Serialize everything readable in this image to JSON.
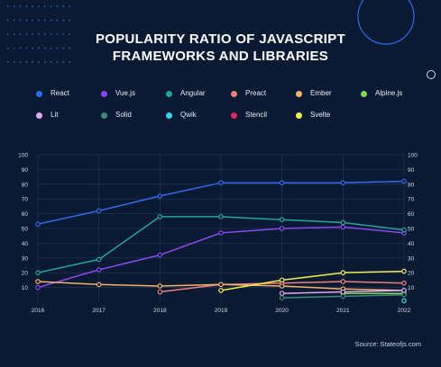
{
  "title_lines": [
    "POPULARITY RATIO OF JAVASCRIPT",
    "FRAMEWORKS AND LIBRARIES"
  ],
  "source": "Source: Stateofjs.com",
  "chart_data": {
    "type": "line",
    "x": [
      "2016",
      "2017",
      "2018",
      "2019",
      "2020",
      "2021",
      "2022"
    ],
    "ylim": [
      0,
      100
    ],
    "yticks": [
      10,
      20,
      30,
      40,
      50,
      60,
      70,
      80,
      90,
      100
    ],
    "grid": true,
    "legend_position": "top",
    "series": [
      {
        "name": "React",
        "color": "#2f6bf0",
        "values": [
          53,
          62,
          72,
          81,
          81,
          81,
          82
        ]
      },
      {
        "name": "Vue.js",
        "color": "#8b46f0",
        "values": [
          10,
          22,
          32,
          47,
          50,
          51,
          47
        ]
      },
      {
        "name": "Angular",
        "color": "#23a898",
        "values": [
          20,
          29,
          58,
          58,
          56,
          54,
          49
        ]
      },
      {
        "name": "Preact",
        "color": "#f0807a",
        "values": [
          null,
          null,
          7,
          12,
          13,
          14,
          13
        ]
      },
      {
        "name": "Ember",
        "color": "#f4b26a",
        "values": [
          14,
          12,
          11,
          12,
          11,
          9,
          8
        ]
      },
      {
        "name": "Alpine.js",
        "color": "#7ed957",
        "values": [
          null,
          null,
          null,
          null,
          null,
          6,
          6
        ]
      },
      {
        "name": "Lit",
        "color": "#e3a8f0",
        "values": [
          null,
          null,
          null,
          null,
          6,
          7,
          8
        ]
      },
      {
        "name": "Solid",
        "color": "#3d8a7a",
        "values": [
          null,
          null,
          null,
          null,
          3,
          4,
          5
        ]
      },
      {
        "name": "Qwik",
        "color": "#2fd6f0",
        "values": [
          null,
          null,
          null,
          null,
          null,
          null,
          1
        ]
      },
      {
        "name": "Stencil",
        "color": "#e0265a",
        "values": [
          null,
          null,
          null,
          null,
          null,
          null,
          null
        ]
      },
      {
        "name": "Svelte",
        "color": "#f2ef50",
        "values": [
          null,
          null,
          null,
          8,
          15,
          20,
          21
        ]
      }
    ]
  }
}
